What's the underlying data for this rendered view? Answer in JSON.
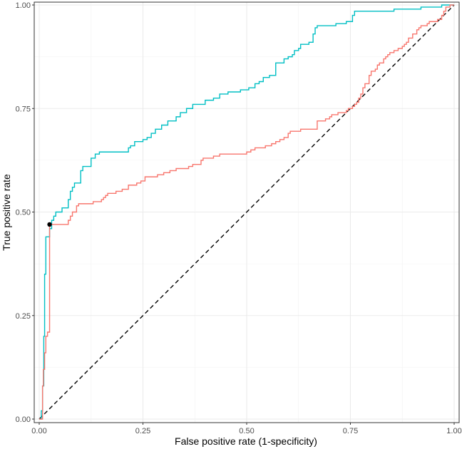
{
  "chart_data": {
    "type": "line",
    "title": "",
    "xlabel": "False positive rate (1-specificity)",
    "ylabel": "True positive rate",
    "xlim": [
      0,
      1
    ],
    "ylim": [
      0,
      1
    ],
    "grid": true,
    "x_ticks": [
      {
        "value": 0,
        "label": "0.00"
      },
      {
        "value": 0.25,
        "label": "0.25"
      },
      {
        "value": 0.5,
        "label": "0.50"
      },
      {
        "value": 0.75,
        "label": "0.75"
      },
      {
        "value": 1,
        "label": "1.00"
      }
    ],
    "y_ticks": [
      {
        "value": 0,
        "label": "0.00"
      },
      {
        "value": 0.25,
        "label": "0.25"
      },
      {
        "value": 0.5,
        "label": "0.50"
      },
      {
        "value": 0.75,
        "label": "0.75"
      },
      {
        "value": 1,
        "label": "1.00"
      }
    ],
    "series": [
      {
        "name": "cyan-curve",
        "color": "#00BFC4",
        "points": [
          [
            0,
            0
          ],
          [
            0.005,
            0
          ],
          [
            0.005,
            0.02
          ],
          [
            0.008,
            0.02
          ],
          [
            0.008,
            0.08
          ],
          [
            0.011,
            0.08
          ],
          [
            0.011,
            0.2
          ],
          [
            0.013,
            0.2
          ],
          [
            0.013,
            0.35
          ],
          [
            0.016,
            0.35
          ],
          [
            0.016,
            0.44
          ],
          [
            0.025,
            0.44
          ],
          [
            0.025,
            0.46
          ],
          [
            0.03,
            0.46
          ],
          [
            0.03,
            0.48
          ],
          [
            0.035,
            0.48
          ],
          [
            0.035,
            0.49
          ],
          [
            0.04,
            0.49
          ],
          [
            0.04,
            0.5
          ],
          [
            0.055,
            0.5
          ],
          [
            0.055,
            0.51
          ],
          [
            0.07,
            0.51
          ],
          [
            0.07,
            0.53
          ],
          [
            0.075,
            0.53
          ],
          [
            0.075,
            0.55
          ],
          [
            0.08,
            0.55
          ],
          [
            0.08,
            0.56
          ],
          [
            0.085,
            0.56
          ],
          [
            0.085,
            0.57
          ],
          [
            0.1,
            0.57
          ],
          [
            0.1,
            0.6
          ],
          [
            0.105,
            0.6
          ],
          [
            0.105,
            0.61
          ],
          [
            0.125,
            0.61
          ],
          [
            0.125,
            0.63
          ],
          [
            0.135,
            0.63
          ],
          [
            0.135,
            0.64
          ],
          [
            0.145,
            0.64
          ],
          [
            0.145,
            0.645
          ],
          [
            0.215,
            0.645
          ],
          [
            0.215,
            0.655
          ],
          [
            0.22,
            0.655
          ],
          [
            0.22,
            0.66
          ],
          [
            0.23,
            0.66
          ],
          [
            0.23,
            0.67
          ],
          [
            0.25,
            0.67
          ],
          [
            0.25,
            0.675
          ],
          [
            0.26,
            0.675
          ],
          [
            0.26,
            0.68
          ],
          [
            0.27,
            0.68
          ],
          [
            0.27,
            0.69
          ],
          [
            0.28,
            0.69
          ],
          [
            0.28,
            0.7
          ],
          [
            0.295,
            0.7
          ],
          [
            0.295,
            0.71
          ],
          [
            0.31,
            0.71
          ],
          [
            0.31,
            0.72
          ],
          [
            0.33,
            0.72
          ],
          [
            0.33,
            0.73
          ],
          [
            0.34,
            0.73
          ],
          [
            0.34,
            0.74
          ],
          [
            0.355,
            0.74
          ],
          [
            0.355,
            0.75
          ],
          [
            0.37,
            0.75
          ],
          [
            0.37,
            0.76
          ],
          [
            0.4,
            0.76
          ],
          [
            0.4,
            0.77
          ],
          [
            0.42,
            0.77
          ],
          [
            0.42,
            0.775
          ],
          [
            0.435,
            0.775
          ],
          [
            0.435,
            0.785
          ],
          [
            0.455,
            0.785
          ],
          [
            0.455,
            0.79
          ],
          [
            0.485,
            0.79
          ],
          [
            0.485,
            0.795
          ],
          [
            0.505,
            0.795
          ],
          [
            0.505,
            0.8
          ],
          [
            0.52,
            0.8
          ],
          [
            0.52,
            0.81
          ],
          [
            0.53,
            0.81
          ],
          [
            0.53,
            0.815
          ],
          [
            0.54,
            0.815
          ],
          [
            0.54,
            0.825
          ],
          [
            0.555,
            0.825
          ],
          [
            0.555,
            0.83
          ],
          [
            0.57,
            0.83
          ],
          [
            0.57,
            0.86
          ],
          [
            0.59,
            0.86
          ],
          [
            0.59,
            0.87
          ],
          [
            0.6,
            0.87
          ],
          [
            0.6,
            0.875
          ],
          [
            0.61,
            0.875
          ],
          [
            0.61,
            0.88
          ],
          [
            0.615,
            0.88
          ],
          [
            0.615,
            0.89
          ],
          [
            0.625,
            0.89
          ],
          [
            0.625,
            0.895
          ],
          [
            0.63,
            0.895
          ],
          [
            0.63,
            0.905
          ],
          [
            0.65,
            0.905
          ],
          [
            0.65,
            0.91
          ],
          [
            0.66,
            0.91
          ],
          [
            0.66,
            0.93
          ],
          [
            0.665,
            0.93
          ],
          [
            0.665,
            0.945
          ],
          [
            0.67,
            0.945
          ],
          [
            0.67,
            0.95
          ],
          [
            0.715,
            0.95
          ],
          [
            0.715,
            0.955
          ],
          [
            0.74,
            0.955
          ],
          [
            0.74,
            0.96
          ],
          [
            0.755,
            0.96
          ],
          [
            0.755,
            0.975
          ],
          [
            0.76,
            0.975
          ],
          [
            0.76,
            0.985
          ],
          [
            0.855,
            0.985
          ],
          [
            0.855,
            0.99
          ],
          [
            0.92,
            0.99
          ],
          [
            0.92,
            0.995
          ],
          [
            0.97,
            0.995
          ],
          [
            0.97,
            1.0
          ],
          [
            1.0,
            1.0
          ]
        ]
      },
      {
        "name": "red-curve",
        "color": "#F8766D",
        "points": [
          [
            0,
            0
          ],
          [
            0.008,
            0
          ],
          [
            0.008,
            0.08
          ],
          [
            0.01,
            0.08
          ],
          [
            0.01,
            0.12
          ],
          [
            0.013,
            0.12
          ],
          [
            0.013,
            0.16
          ],
          [
            0.016,
            0.16
          ],
          [
            0.016,
            0.2
          ],
          [
            0.02,
            0.2
          ],
          [
            0.02,
            0.21
          ],
          [
            0.025,
            0.21
          ],
          [
            0.025,
            0.47
          ],
          [
            0.07,
            0.47
          ],
          [
            0.07,
            0.48
          ],
          [
            0.075,
            0.48
          ],
          [
            0.075,
            0.49
          ],
          [
            0.08,
            0.49
          ],
          [
            0.08,
            0.5
          ],
          [
            0.09,
            0.5
          ],
          [
            0.09,
            0.515
          ],
          [
            0.095,
            0.515
          ],
          [
            0.095,
            0.52
          ],
          [
            0.13,
            0.52
          ],
          [
            0.13,
            0.525
          ],
          [
            0.15,
            0.525
          ],
          [
            0.15,
            0.53
          ],
          [
            0.155,
            0.53
          ],
          [
            0.155,
            0.535
          ],
          [
            0.16,
            0.535
          ],
          [
            0.16,
            0.54
          ],
          [
            0.165,
            0.54
          ],
          [
            0.165,
            0.545
          ],
          [
            0.185,
            0.545
          ],
          [
            0.185,
            0.55
          ],
          [
            0.2,
            0.55
          ],
          [
            0.2,
            0.555
          ],
          [
            0.215,
            0.555
          ],
          [
            0.215,
            0.565
          ],
          [
            0.235,
            0.565
          ],
          [
            0.235,
            0.57
          ],
          [
            0.245,
            0.57
          ],
          [
            0.245,
            0.575
          ],
          [
            0.255,
            0.575
          ],
          [
            0.255,
            0.585
          ],
          [
            0.285,
            0.585
          ],
          [
            0.285,
            0.59
          ],
          [
            0.3,
            0.59
          ],
          [
            0.3,
            0.595
          ],
          [
            0.315,
            0.595
          ],
          [
            0.315,
            0.6
          ],
          [
            0.33,
            0.6
          ],
          [
            0.33,
            0.605
          ],
          [
            0.36,
            0.605
          ],
          [
            0.36,
            0.61
          ],
          [
            0.37,
            0.61
          ],
          [
            0.37,
            0.615
          ],
          [
            0.39,
            0.615
          ],
          [
            0.39,
            0.625
          ],
          [
            0.395,
            0.625
          ],
          [
            0.395,
            0.63
          ],
          [
            0.42,
            0.63
          ],
          [
            0.42,
            0.635
          ],
          [
            0.435,
            0.635
          ],
          [
            0.435,
            0.64
          ],
          [
            0.5,
            0.64
          ],
          [
            0.5,
            0.645
          ],
          [
            0.51,
            0.645
          ],
          [
            0.51,
            0.65
          ],
          [
            0.52,
            0.65
          ],
          [
            0.52,
            0.655
          ],
          [
            0.545,
            0.655
          ],
          [
            0.545,
            0.66
          ],
          [
            0.56,
            0.66
          ],
          [
            0.56,
            0.665
          ],
          [
            0.57,
            0.665
          ],
          [
            0.57,
            0.67
          ],
          [
            0.58,
            0.67
          ],
          [
            0.58,
            0.675
          ],
          [
            0.59,
            0.675
          ],
          [
            0.59,
            0.68
          ],
          [
            0.6,
            0.68
          ],
          [
            0.6,
            0.69
          ],
          [
            0.605,
            0.69
          ],
          [
            0.605,
            0.695
          ],
          [
            0.63,
            0.695
          ],
          [
            0.63,
            0.7
          ],
          [
            0.67,
            0.7
          ],
          [
            0.67,
            0.72
          ],
          [
            0.69,
            0.72
          ],
          [
            0.69,
            0.725
          ],
          [
            0.7,
            0.725
          ],
          [
            0.7,
            0.73
          ],
          [
            0.705,
            0.73
          ],
          [
            0.705,
            0.735
          ],
          [
            0.72,
            0.735
          ],
          [
            0.72,
            0.74
          ],
          [
            0.74,
            0.74
          ],
          [
            0.74,
            0.745
          ],
          [
            0.745,
            0.745
          ],
          [
            0.745,
            0.75
          ],
          [
            0.755,
            0.75
          ],
          [
            0.755,
            0.755
          ],
          [
            0.76,
            0.755
          ],
          [
            0.76,
            0.76
          ],
          [
            0.765,
            0.76
          ],
          [
            0.765,
            0.765
          ],
          [
            0.77,
            0.765
          ],
          [
            0.77,
            0.775
          ],
          [
            0.775,
            0.775
          ],
          [
            0.775,
            0.785
          ],
          [
            0.78,
            0.785
          ],
          [
            0.78,
            0.8
          ],
          [
            0.785,
            0.8
          ],
          [
            0.785,
            0.81
          ],
          [
            0.795,
            0.81
          ],
          [
            0.795,
            0.83
          ],
          [
            0.8,
            0.83
          ],
          [
            0.8,
            0.84
          ],
          [
            0.81,
            0.84
          ],
          [
            0.81,
            0.845
          ],
          [
            0.815,
            0.845
          ],
          [
            0.815,
            0.855
          ],
          [
            0.82,
            0.855
          ],
          [
            0.82,
            0.86
          ],
          [
            0.83,
            0.86
          ],
          [
            0.83,
            0.87
          ],
          [
            0.835,
            0.87
          ],
          [
            0.835,
            0.875
          ],
          [
            0.84,
            0.875
          ],
          [
            0.84,
            0.88
          ],
          [
            0.845,
            0.88
          ],
          [
            0.845,
            0.885
          ],
          [
            0.855,
            0.885
          ],
          [
            0.855,
            0.89
          ],
          [
            0.865,
            0.89
          ],
          [
            0.865,
            0.895
          ],
          [
            0.875,
            0.895
          ],
          [
            0.875,
            0.9
          ],
          [
            0.88,
            0.9
          ],
          [
            0.88,
            0.905
          ],
          [
            0.885,
            0.905
          ],
          [
            0.885,
            0.91
          ],
          [
            0.89,
            0.91
          ],
          [
            0.89,
            0.92
          ],
          [
            0.9,
            0.92
          ],
          [
            0.9,
            0.93
          ],
          [
            0.91,
            0.93
          ],
          [
            0.91,
            0.94
          ],
          [
            0.915,
            0.94
          ],
          [
            0.915,
            0.945
          ],
          [
            0.92,
            0.945
          ],
          [
            0.92,
            0.95
          ],
          [
            0.935,
            0.95
          ],
          [
            0.935,
            0.955
          ],
          [
            0.94,
            0.955
          ],
          [
            0.94,
            0.96
          ],
          [
            0.96,
            0.96
          ],
          [
            0.96,
            0.965
          ],
          [
            0.97,
            0.965
          ],
          [
            0.97,
            0.975
          ],
          [
            0.975,
            0.975
          ],
          [
            0.975,
            0.985
          ],
          [
            0.98,
            0.985
          ],
          [
            0.98,
            0.995
          ],
          [
            0.99,
            0.995
          ],
          [
            0.99,
            1.0
          ],
          [
            1.0,
            1.0
          ]
        ]
      }
    ],
    "reference_line": {
      "from": [
        0,
        0
      ],
      "to": [
        1,
        1
      ],
      "style": "dashed",
      "color": "#000000"
    },
    "highlight_point": {
      "x": 0.025,
      "y": 0.47,
      "color": "#000000"
    }
  }
}
